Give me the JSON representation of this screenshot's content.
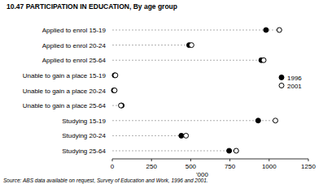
{
  "chart_data": {
    "type": "dot",
    "orientation": "horizontal",
    "title": "10.47   PARTICIPATION IN EDUCATION, By age group",
    "x_label": "'000",
    "source": "Source: ABS data available on request, Survey of Education and Work, 1996 and 2001.",
    "categories": [
      "Applied to enrol 15-19",
      "Applied to enrol 20-24",
      "Applied to enrol 25-64",
      "Unable to gain a place 15-19",
      "Unable to gain a place 20-24",
      "Unable to gain a place 25-64",
      "Studying 15-19",
      "Studying 20-24",
      "Studying 25-64"
    ],
    "series": [
      {
        "name": "1996",
        "color": "#000000",
        "marker": "filled",
        "values": [
          980,
          490,
          950,
          15,
          10,
          60,
          930,
          440,
          745
        ]
      },
      {
        "name": "2001",
        "color": "#000000",
        "marker": "open",
        "values": [
          1065,
          505,
          965,
          20,
          15,
          55,
          1040,
          470,
          790
        ]
      }
    ],
    "xlim": [
      0,
      1250
    ],
    "xticks": [
      0,
      250,
      500,
      750,
      1000,
      1250
    ],
    "grid": false,
    "legend": "right"
  }
}
